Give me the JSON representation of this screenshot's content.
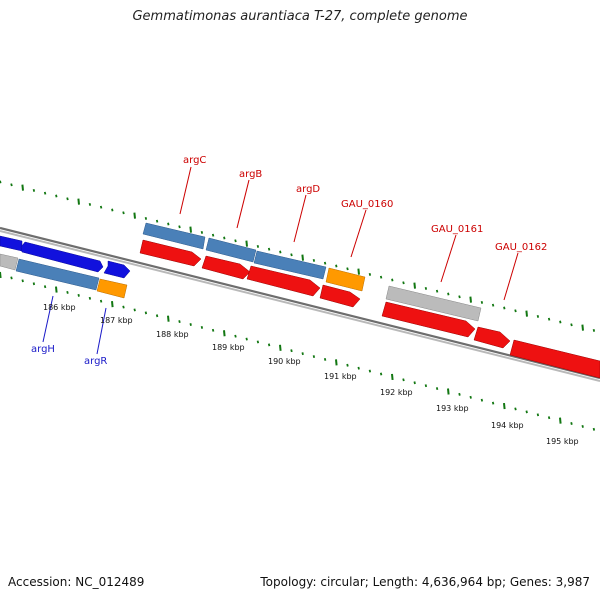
{
  "header": {
    "title": "Gemmatimonas aurantiaca T-27, complete genome"
  },
  "footer": {
    "accession": "Accession: NC_012489",
    "summary": "Topology: circular; Length: 4,636,964 bp; Genes: 3,987"
  },
  "colors": {
    "forward_cds": "#4a80b8",
    "reverse_cds": "#ee1111",
    "blue_cds": "#1111dd",
    "orange_cds": "#ff9900",
    "grey_cds": "#bbbbbb",
    "backbone": "#808080",
    "ticks": "#127712",
    "label_red": "#cc0000",
    "label_blue": "#1a1ac8"
  },
  "kbp_ticks": [
    "186 kbp",
    "187 kbp",
    "188 kbp",
    "189 kbp",
    "190 kbp",
    "191 kbp",
    "192 kbp",
    "193 kbp",
    "194 kbp",
    "195 kbp"
  ],
  "gene_labels_top": [
    "argC",
    "argB",
    "argD",
    "GAU_0160",
    "GAU_0161",
    "GAU_0162"
  ],
  "gene_labels_bottom": [
    "argH",
    "argR"
  ]
}
